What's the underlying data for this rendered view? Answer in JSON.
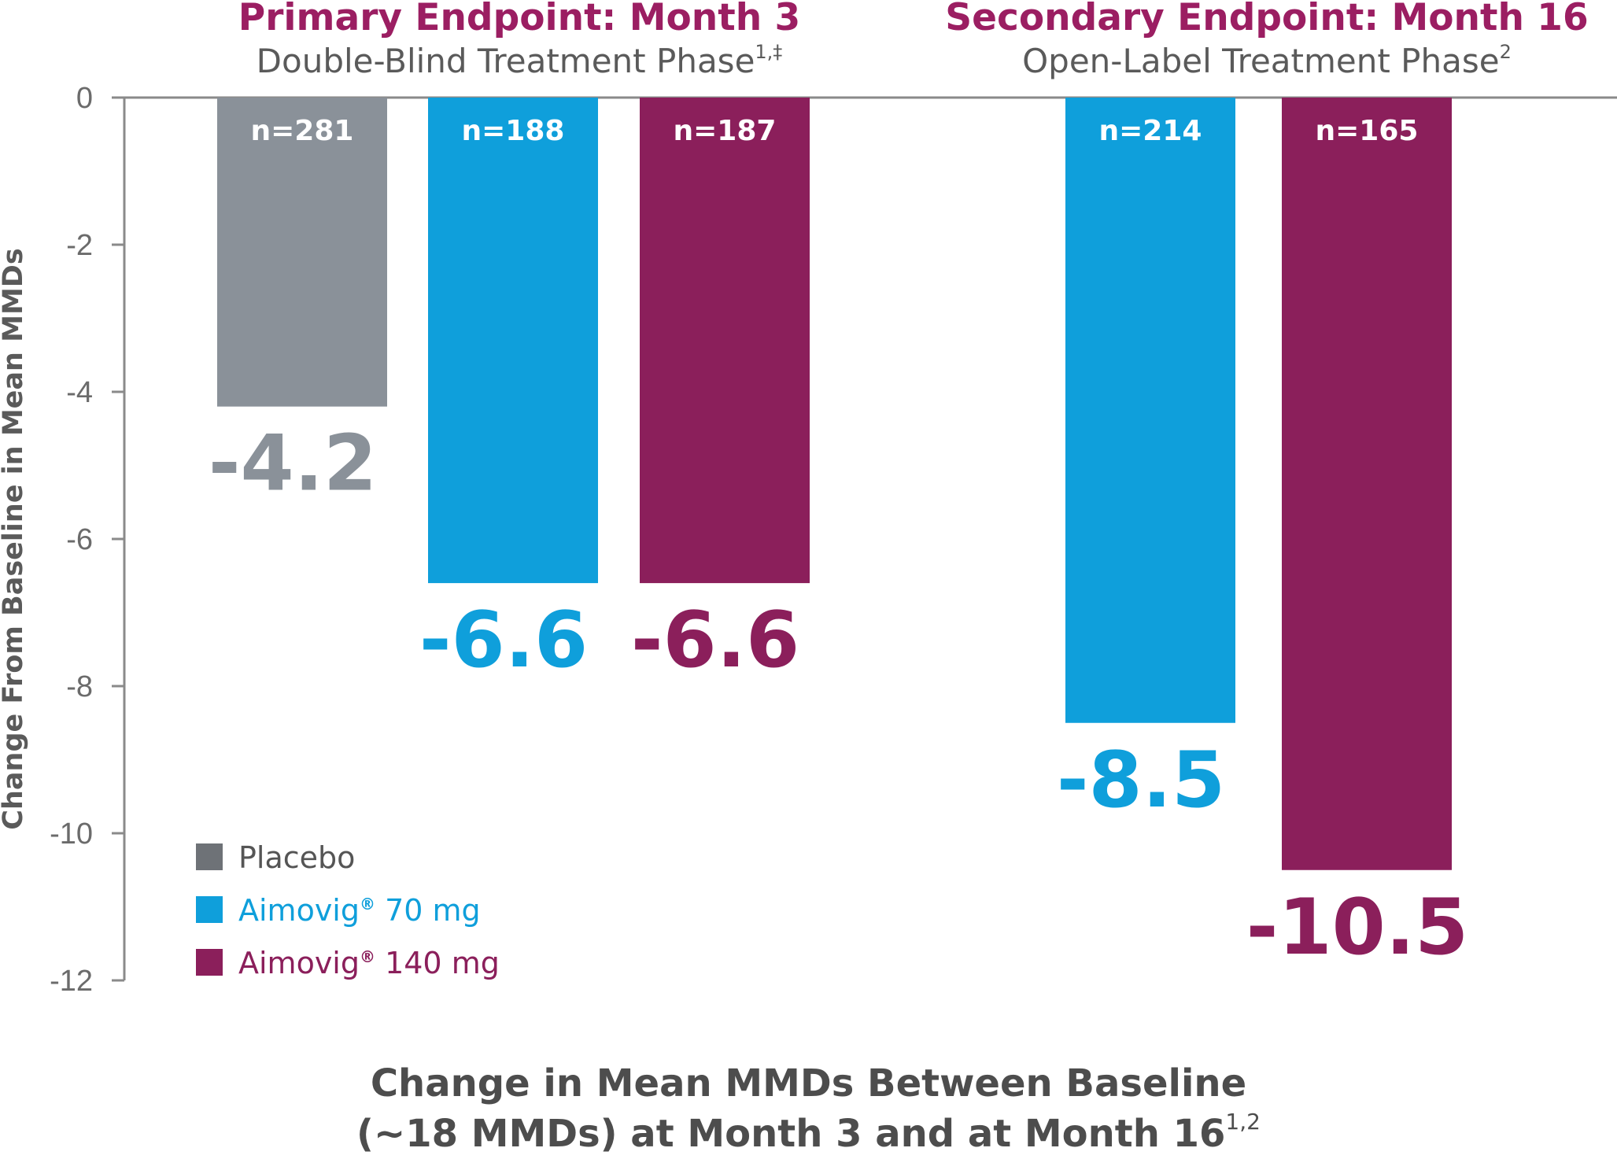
{
  "chart_data": {
    "type": "bar",
    "ylabel": "Change From Baseline in Mean MMDs",
    "ylim": [
      -12,
      0
    ],
    "yticks": [
      0,
      -2,
      -4,
      -6,
      -8,
      -10,
      -12
    ],
    "groups": [
      {
        "title": "Primary Endpoint: Month 3",
        "subtitle": "Double-Blind Treatment Phase",
        "subtitle_sup": "1,‡",
        "bars": [
          {
            "series": "Placebo",
            "value": -4.2,
            "value_label": "-4.2",
            "n_label": "n=281"
          },
          {
            "series": "Aimovig 70 mg",
            "value": -6.6,
            "value_label": "-6.6",
            "n_label": "n=188"
          },
          {
            "series": "Aimovig 140 mg",
            "value": -6.6,
            "value_label": "-6.6",
            "n_label": "n=187"
          }
        ]
      },
      {
        "title": "Secondary Endpoint: Month 16",
        "subtitle": "Open-Label Treatment Phase",
        "subtitle_sup": "2",
        "bars": [
          {
            "series": "Aimovig 70 mg",
            "value": -8.5,
            "value_label": "-8.5",
            "n_label": "n=214"
          },
          {
            "series": "Aimovig 140 mg",
            "value": -10.5,
            "value_label": "-10.5",
            "n_label": "n=165"
          }
        ]
      }
    ],
    "legend": [
      {
        "label": "Placebo",
        "sup": "",
        "suffix": ""
      },
      {
        "label": "Aimovig",
        "sup": "®",
        "suffix": " 70 mg"
      },
      {
        "label": "Aimovig",
        "sup": "®",
        "suffix": " 140 mg"
      }
    ],
    "legend_position": "bottom-left"
  },
  "colors": {
    "Placebo": "#8a9199",
    "Aimovig 70 mg": "#0f9fdb",
    "Aimovig 140 mg": "#8b1f5b",
    "placebo_legend": "#6e7277",
    "title": "#9b1e62",
    "axis": "#8a8a8a"
  },
  "caption": {
    "line1": "Change in Mean MMDs Between Baseline",
    "line2": "(~18 MMDs) at Month 3 and at Month 16",
    "line2_sup": "1,2"
  }
}
